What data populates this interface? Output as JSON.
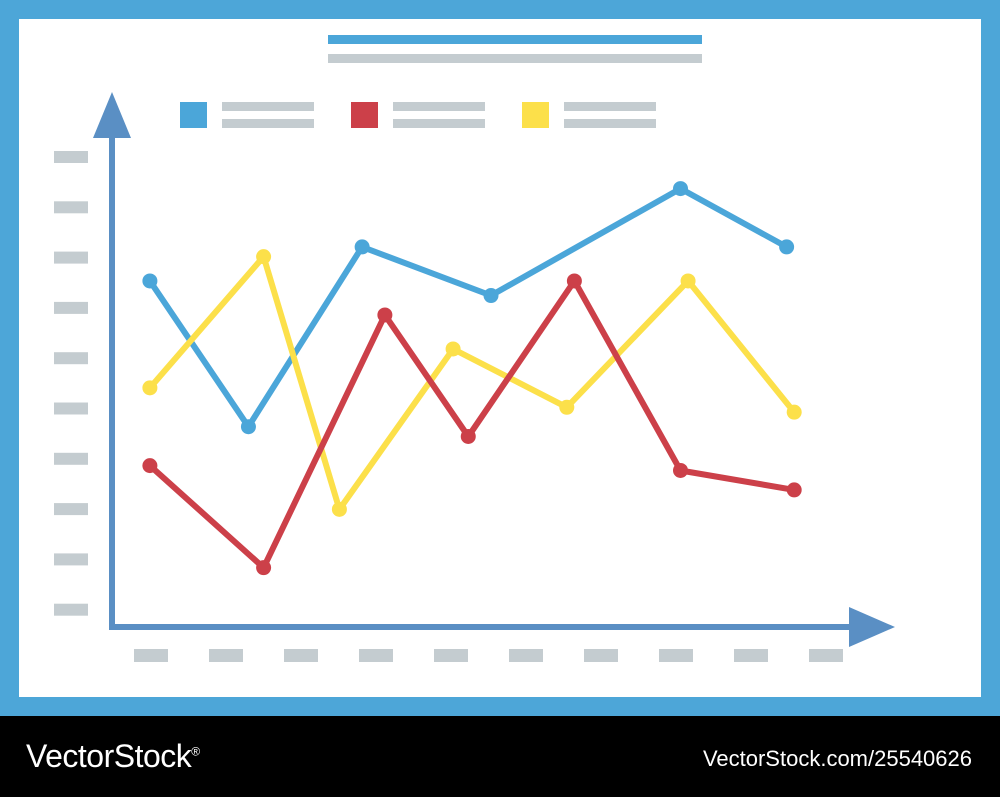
{
  "colors": {
    "frame": "#4da6d8",
    "board": "#ffffff",
    "placeholder": "#c4ccd0",
    "axis": "#5a8fc4",
    "blue": "#4ba6d9",
    "red": "#cc4049",
    "yellow": "#fce04a",
    "footer_bg": "#000000",
    "footer_text": "#ffffff"
  },
  "chart_data": {
    "type": "line",
    "title": "",
    "xlabel": "",
    "ylabel": "",
    "legend_position": "top",
    "grid": false,
    "xlim": [
      0,
      10
    ],
    "ylim": [
      0,
      10
    ],
    "series": [
      {
        "color": "#4ba6d9",
        "points": [
          [
            0.5,
            7.1
          ],
          [
            1.8,
            4.1
          ],
          [
            3.3,
            7.8
          ],
          [
            5.0,
            6.8
          ],
          [
            7.5,
            9.0
          ],
          [
            8.9,
            7.8
          ]
        ]
      },
      {
        "color": "#cc4049",
        "points": [
          [
            0.5,
            3.3
          ],
          [
            2.0,
            1.2
          ],
          [
            3.6,
            6.4
          ],
          [
            4.7,
            3.9
          ],
          [
            6.1,
            7.1
          ],
          [
            7.5,
            3.2
          ],
          [
            9.0,
            2.8
          ]
        ]
      },
      {
        "color": "#fce04a",
        "points": [
          [
            0.5,
            4.9
          ],
          [
            2.0,
            7.6
          ],
          [
            3.0,
            2.4
          ],
          [
            4.5,
            5.7
          ],
          [
            6.0,
            4.5
          ],
          [
            7.6,
            7.1
          ],
          [
            9.0,
            4.4
          ]
        ]
      }
    ]
  },
  "footer": {
    "brand": "VectorStock",
    "brand_mark": "®",
    "image_id": "VectorStock.com/25540626"
  }
}
